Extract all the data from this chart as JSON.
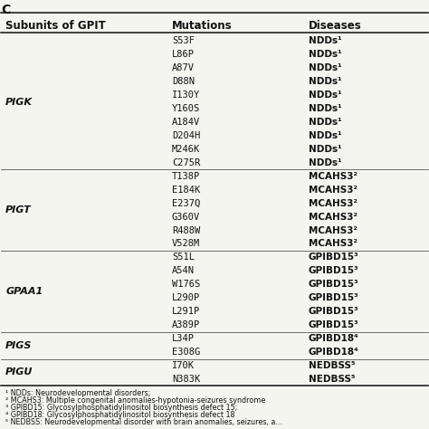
{
  "title": "C",
  "header": [
    "Subunits of GPIT",
    "Mutations",
    "Diseases"
  ],
  "groups": [
    {
      "subunit": "PIGK",
      "mutations": [
        "S53F",
        "L86P",
        "A87V",
        "D88N",
        "I130Y",
        "Y160S",
        "A184V",
        "D204H",
        "M246K",
        "C275R"
      ],
      "diseases": [
        "NDDs¹",
        "NDDs¹",
        "NDDs¹",
        "NDDs¹",
        "NDDs¹",
        "NDDs¹",
        "NDDs¹",
        "NDDs¹",
        "NDDs¹",
        "NDDs¹"
      ]
    },
    {
      "subunit": "PIGT",
      "mutations": [
        "T138P",
        "E184K",
        "E237Q",
        "G360V",
        "R488W",
        "V528M"
      ],
      "diseases": [
        "MCAHS3²",
        "MCAHS3²",
        "MCAHS3²",
        "MCAHS3²",
        "MCAHS3²",
        "MCAHS3²"
      ]
    },
    {
      "subunit": "GPAA1",
      "mutations": [
        "S51L",
        "A54N",
        "W176S",
        "L290P",
        "L291P",
        "A389P"
      ],
      "diseases": [
        "GPIBD15³",
        "GPIBD15³",
        "GPIBD15³",
        "GPIBD15³",
        "GPIBD15³",
        "GPIBD15³"
      ]
    },
    {
      "subunit": "PIGS",
      "mutations": [
        "L34P",
        "E308G"
      ],
      "diseases": [
        "GPIBD18⁴",
        "GPIBD18⁴"
      ]
    },
    {
      "subunit": "PIGU",
      "mutations": [
        "I70K",
        "N383K"
      ],
      "diseases": [
        "NEDBSS⁵",
        "NEDBSS⁵"
      ]
    }
  ],
  "footnotes": [
    "¹ NDDs: Neurodevelopmental disorders;",
    "² MCAHS3: Multiple congenital anomalies-hypotonia-seizures syndrome",
    "³ GPIBD15: Glycosylphosphatidylinositol biosynthesis defect 15;",
    "⁴ GPIBD18: Glycosylphosphatidylinositol biosynthesis defect 18",
    "⁵ NEDBSS: Neurodevelopmental disorder with brain anomalies, seizures, a..."
  ],
  "bg_color": "#f5f5f0",
  "header_line_color": "#222222",
  "group_line_color": "#555555",
  "text_color": "#111111",
  "subunit_color": "#111111",
  "header_fontsize": 8.5,
  "body_fontsize": 7.5,
  "footnote_fontsize": 5.8
}
